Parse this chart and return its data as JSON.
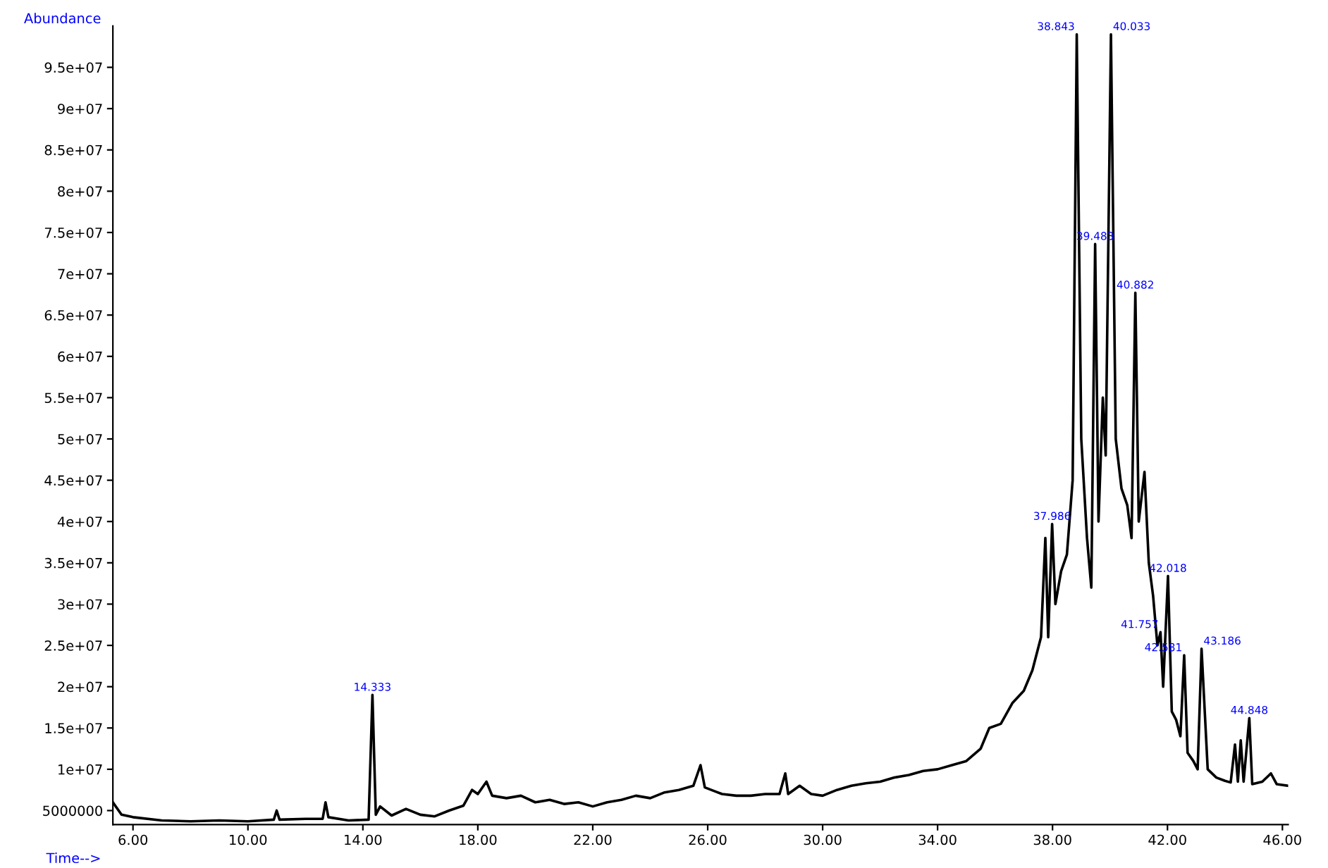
{
  "chart_data": {
    "type": "line",
    "xlabel": "Time-->",
    "ylabel": "Abundance",
    "xlim": [
      5.3,
      46.2
    ],
    "ylim": [
      3300000,
      100000000
    ],
    "xticks": [
      {
        "value": 6,
        "label": "6.00"
      },
      {
        "value": 10,
        "label": "10.00"
      },
      {
        "value": 14,
        "label": "14.00"
      },
      {
        "value": 18,
        "label": "18.00"
      },
      {
        "value": 22,
        "label": "22.00"
      },
      {
        "value": 26,
        "label": "26.00"
      },
      {
        "value": 30,
        "label": "30.00"
      },
      {
        "value": 34,
        "label": "34.00"
      },
      {
        "value": 38,
        "label": "38.00"
      },
      {
        "value": 42,
        "label": "42.00"
      },
      {
        "value": 46,
        "label": "46.00"
      }
    ],
    "yticks": [
      5000000,
      {
        "value": 10000000,
        "label": "1e+07"
      },
      {
        "value": 15000000,
        "label": "1.5e+07"
      },
      {
        "value": 20000000,
        "label": "2e+07"
      },
      {
        "value": 25000000,
        "label": "2.5e+07"
      },
      {
        "value": 30000000,
        "label": "3e+07"
      },
      {
        "value": 35000000,
        "label": "3.5e+07"
      },
      {
        "value": 40000000,
        "label": "4e+07"
      },
      {
        "value": 45000000,
        "label": "4.5e+07"
      },
      {
        "value": 50000000,
        "label": "5e+07"
      },
      {
        "value": 55000000,
        "label": "5.5e+07"
      },
      {
        "value": 60000000,
        "label": "6e+07"
      },
      {
        "value": 65000000,
        "label": "6.5e+07"
      },
      {
        "value": 70000000,
        "label": "7e+07"
      },
      {
        "value": 75000000,
        "label": "7.5e+07"
      },
      {
        "value": 80000000,
        "label": "8e+07"
      },
      {
        "value": 85000000,
        "label": "8.5e+07"
      },
      {
        "value": 90000000,
        "label": "9e+07"
      },
      {
        "value": 95000000,
        "label": "9.5e+07"
      }
    ],
    "grid": false,
    "legend": false,
    "marker": "none",
    "line_style": "solid",
    "series": [
      {
        "color": "#000000",
        "x": [
          5.3,
          5.6,
          6.0,
          7,
          8,
          9,
          10,
          10.9,
          11.0,
          11.1,
          12,
          12.6,
          12.7,
          12.8,
          13.5,
          14.2,
          14.333,
          14.45,
          14.6,
          15,
          15.5,
          16,
          16.5,
          17,
          17.5,
          17.8,
          18.0,
          18.3,
          18.5,
          19,
          19.5,
          20,
          20.5,
          21,
          21.5,
          22,
          22.5,
          23,
          23.5,
          24,
          24.5,
          25,
          25.5,
          25.75,
          25.9,
          26.5,
          27,
          27.5,
          28,
          28.5,
          28.7,
          28.8,
          29.2,
          29.6,
          30,
          30.5,
          31,
          31.5,
          32,
          32.5,
          33,
          33.5,
          34,
          34.5,
          35,
          35.5,
          35.8,
          36.2,
          36.6,
          37,
          37.3,
          37.6,
          37.75,
          37.85,
          37.986,
          38.1,
          38.3,
          38.5,
          38.7,
          38.843,
          39.0,
          39.2,
          39.35,
          39.483,
          39.6,
          39.75,
          39.85,
          40.033,
          40.2,
          40.4,
          40.6,
          40.75,
          40.882,
          41.0,
          41.2,
          41.35,
          41.5,
          41.65,
          41.757,
          41.85,
          42.018,
          42.15,
          42.3,
          42.45,
          42.581,
          42.7,
          42.9,
          43.05,
          43.186,
          43.4,
          43.7,
          44.0,
          44.2,
          44.35,
          44.45,
          44.55,
          44.65,
          44.848,
          44.95,
          45.3,
          45.6,
          45.8,
          46.2
        ],
        "values": [
          6000000,
          4500000,
          4200000,
          3800000,
          3700000,
          3800000,
          3700000,
          3900000,
          5000000,
          3900000,
          4000000,
          4000000,
          6000000,
          4200000,
          3800000,
          3900000,
          19000000,
          4500000,
          5500000,
          4400000,
          5200000,
          4500000,
          4300000,
          5000000,
          5600000,
          7500000,
          7000000,
          8500000,
          6800000,
          6500000,
          6800000,
          6000000,
          6300000,
          5800000,
          6000000,
          5500000,
          6000000,
          6300000,
          6800000,
          6500000,
          7200000,
          7500000,
          8000000,
          10500000,
          7800000,
          7000000,
          6800000,
          6800000,
          7000000,
          7000000,
          9500000,
          7000000,
          8000000,
          7000000,
          6800000,
          7500000,
          8000000,
          8300000,
          8500000,
          9000000,
          9300000,
          9800000,
          10000000,
          10500000,
          11000000,
          12500000,
          15000000,
          15500000,
          18000000,
          19500000,
          22000000,
          26000000,
          38000000,
          26000000,
          39700000,
          30000000,
          34000000,
          36000000,
          45000000,
          99000000,
          50000000,
          38000000,
          32000000,
          73600000,
          40000000,
          55000000,
          48000000,
          99000000,
          50000000,
          44000000,
          42000000,
          38000000,
          67700000,
          40000000,
          46000000,
          35000000,
          31000000,
          25000000,
          26600000,
          20000000,
          33400000,
          17000000,
          16000000,
          14000000,
          23800000,
          12000000,
          11000000,
          10000000,
          24600000,
          10000000,
          9000000,
          8600000,
          8400000,
          13000000,
          8500000,
          13500000,
          8500000,
          16200000,
          8200000,
          8500000,
          9500000,
          8200000,
          8000000
        ]
      }
    ],
    "annotations": [
      {
        "text": "14.333",
        "x": 14.333,
        "y": 19000000
      },
      {
        "text": "37.986",
        "x": 37.986,
        "y": 39700000
      },
      {
        "text": "38.843",
        "x": 38.843,
        "y": 99000000
      },
      {
        "text": "39.483",
        "x": 39.483,
        "y": 73600000
      },
      {
        "text": "40.033",
        "x": 40.033,
        "y": 99000000
      },
      {
        "text": "40.882",
        "x": 40.882,
        "y": 67700000
      },
      {
        "text": "41.757",
        "x": 41.757,
        "y": 26600000
      },
      {
        "text": "42.018",
        "x": 42.018,
        "y": 33400000
      },
      {
        "text": "42.581",
        "x": 42.581,
        "y": 23800000
      },
      {
        "text": "43.186",
        "x": 43.186,
        "y": 24600000
      },
      {
        "text": "44.848",
        "x": 44.848,
        "y": 16200000
      }
    ]
  }
}
